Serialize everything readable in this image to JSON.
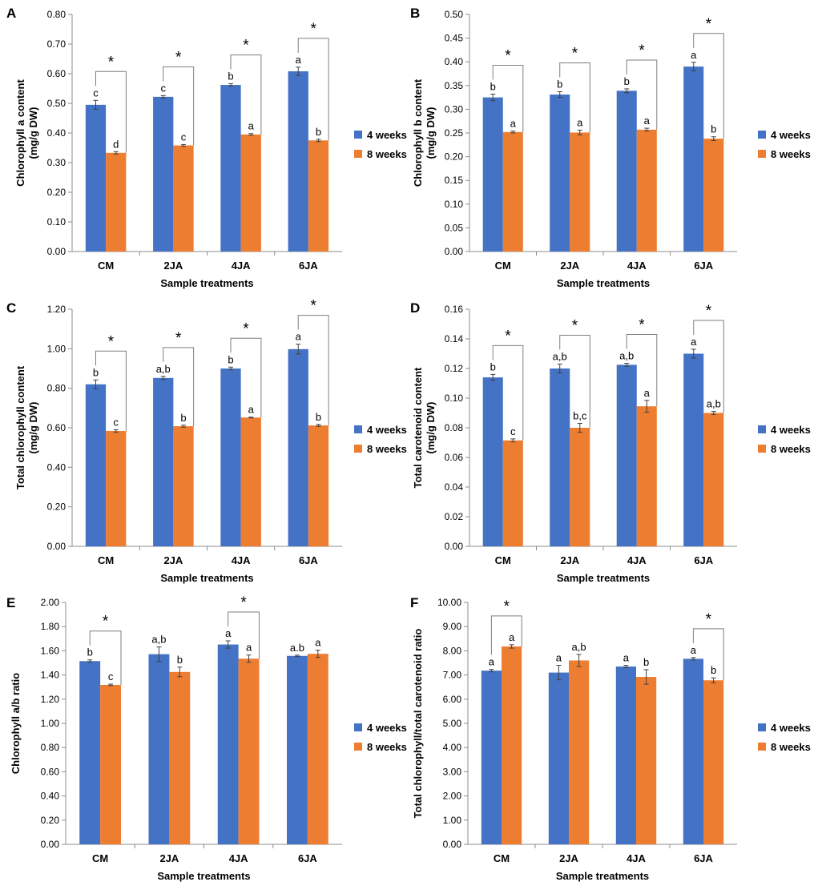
{
  "colors": {
    "series_4w": "#4472C4",
    "series_8w": "#ED7D31",
    "axis": "#8c8c8c",
    "bracket": "#7f7f7f",
    "errorbar": "#404040"
  },
  "chart_data": [
    {
      "panel": "A",
      "type": "bar",
      "categories": [
        "CM",
        "2JA",
        "4JA",
        "6JA"
      ],
      "xlabel": "Sample treatments",
      "ylabel_line1": "Chlorophyll a content",
      "ylabel_line2": "(mg/g DW)",
      "ylim": [
        0,
        0.8
      ],
      "tick_step": 0.1,
      "tick_labels": [
        "0.00",
        "0.10",
        "0.20",
        "0.30",
        "0.40",
        "0.50",
        "0.60",
        "0.70",
        "0.80"
      ],
      "legend": [
        "4 weeks",
        "8 weeks"
      ],
      "series": [
        {
          "name": "4 weeks",
          "values": [
            0.495,
            0.522,
            0.562,
            0.608
          ],
          "errors": [
            0.015,
            0.004,
            0.004,
            0.014
          ],
          "letters": [
            "c",
            "c",
            "b",
            "a"
          ]
        },
        {
          "name": "8 weeks",
          "values": [
            0.333,
            0.358,
            0.395,
            0.375
          ],
          "errors": [
            0.004,
            0.003,
            0.003,
            0.004
          ],
          "letters": [
            "d",
            "c",
            "a",
            "b"
          ]
        }
      ],
      "significance": [
        "*",
        "*",
        "*",
        "*"
      ]
    },
    {
      "panel": "B",
      "type": "bar",
      "categories": [
        "CM",
        "2JA",
        "4JA",
        "6JA"
      ],
      "xlabel": "Sample treatments",
      "ylabel_line1": "Chlorophyll b content",
      "ylabel_line2": "(mg/g DW)",
      "ylim": [
        0,
        0.5
      ],
      "tick_step": 0.05,
      "tick_labels": [
        "0.00",
        "0.05",
        "0.10",
        "0.15",
        "0.20",
        "0.25",
        "0.30",
        "0.35",
        "0.40",
        "0.45",
        "0.50"
      ],
      "legend": [
        "4 weeks",
        "8 weeks"
      ],
      "series": [
        {
          "name": "4 weeks",
          "values": [
            0.325,
            0.331,
            0.339,
            0.39
          ],
          "errors": [
            0.007,
            0.006,
            0.004,
            0.009
          ],
          "letters": [
            "b",
            "b",
            "b",
            "a"
          ]
        },
        {
          "name": "8 weeks",
          "values": [
            0.252,
            0.251,
            0.257,
            0.238
          ],
          "errors": [
            0.002,
            0.005,
            0.003,
            0.004
          ],
          "letters": [
            "a",
            "a",
            "a",
            "b"
          ]
        }
      ],
      "significance": [
        "*",
        "*",
        "*",
        "*"
      ]
    },
    {
      "panel": "C",
      "type": "bar",
      "categories": [
        "CM",
        "2JA",
        "4JA",
        "6JA"
      ],
      "xlabel": "Sample treatments",
      "ylabel_line1": "Total chlorophyll content",
      "ylabel_line2": "(mg/g DW)",
      "ylim": [
        0,
        1.2
      ],
      "tick_step": 0.2,
      "tick_labels": [
        "0.00",
        "0.20",
        "0.40",
        "0.60",
        "0.80",
        "1.00",
        "1.20"
      ],
      "legend": [
        "4 weeks",
        "8 weeks"
      ],
      "series": [
        {
          "name": "4 weeks",
          "values": [
            0.82,
            0.852,
            0.9,
            0.998
          ],
          "errors": [
            0.022,
            0.008,
            0.007,
            0.025
          ],
          "letters": [
            "b",
            "a,b",
            "b",
            "a"
          ]
        },
        {
          "name": "8 weeks",
          "values": [
            0.584,
            0.608,
            0.652,
            0.612
          ],
          "errors": [
            0.006,
            0.005,
            0.002,
            0.005
          ],
          "letters": [
            "c",
            "b",
            "a",
            "b"
          ]
        }
      ],
      "significance": [
        "*",
        "*",
        "*",
        "*"
      ]
    },
    {
      "panel": "D",
      "type": "bar",
      "categories": [
        "CM",
        "2JA",
        "4JA",
        "6JA"
      ],
      "xlabel": "Sample treatments",
      "ylabel_line1": "Total carotenoid content",
      "ylabel_line2": "(mg/g DW)",
      "ylim": [
        0,
        0.16
      ],
      "tick_step": 0.02,
      "tick_labels": [
        "0.00",
        "0.02",
        "0.04",
        "0.06",
        "0.08",
        "0.10",
        "0.12",
        "0.14",
        "0.16"
      ],
      "legend": [
        "4 weeks",
        "8 weeks"
      ],
      "series": [
        {
          "name": "4 weeks",
          "values": [
            0.114,
            0.12,
            0.1225,
            0.13
          ],
          "errors": [
            0.002,
            0.003,
            0.001,
            0.003
          ],
          "letters": [
            "b",
            "a,b",
            "a,b",
            "a"
          ]
        },
        {
          "name": "8 weeks",
          "values": [
            0.0715,
            0.08,
            0.0945,
            0.09
          ],
          "errors": [
            0.001,
            0.003,
            0.004,
            0.001
          ],
          "letters": [
            "c",
            "b,c",
            "a",
            "a,b"
          ]
        }
      ],
      "significance": [
        "*",
        "*",
        "*",
        "*"
      ]
    },
    {
      "panel": "E",
      "type": "bar",
      "categories": [
        "CM",
        "2JA",
        "4JA",
        "6JA"
      ],
      "xlabel": "Sample treatments",
      "ylabel_line1": "Chlorophyll a/b ratio",
      "ylabel_line2": "",
      "ylim": [
        0,
        2.0
      ],
      "tick_step": 0.2,
      "tick_labels": [
        "0.00",
        "0.20",
        "0.40",
        "0.60",
        "0.80",
        "1.00",
        "1.20",
        "1.40",
        "1.60",
        "1.80",
        "2.00"
      ],
      "legend": [
        "4 weeks",
        "8 weeks"
      ],
      "series": [
        {
          "name": "4 weeks",
          "values": [
            1.515,
            1.572,
            1.652,
            1.558
          ],
          "errors": [
            0.01,
            0.06,
            0.03,
            0.006
          ],
          "letters": [
            "b",
            "a,b",
            "a",
            "a.b"
          ]
        },
        {
          "name": "8 weeks",
          "values": [
            1.318,
            1.425,
            1.535,
            1.575
          ],
          "errors": [
            0.006,
            0.04,
            0.03,
            0.03
          ],
          "letters": [
            "c",
            "b",
            "a",
            "a"
          ]
        }
      ],
      "significance": [
        "*",
        "",
        "*",
        ""
      ]
    },
    {
      "panel": "F",
      "type": "bar",
      "categories": [
        "CM",
        "2JA",
        "4JA",
        "6JA"
      ],
      "xlabel": "Sample treatments",
      "ylabel_line1": "Total chlorophyll/total carotenoid ratio",
      "ylabel_line2": "",
      "ylim": [
        0,
        10
      ],
      "tick_step": 1,
      "tick_labels": [
        "0.00",
        "1.00",
        "2.00",
        "3.00",
        "4.00",
        "5.00",
        "6.00",
        "7.00",
        "8.00",
        "9.00",
        "10.00"
      ],
      "legend": [
        "4 weeks",
        "8 weeks"
      ],
      "series": [
        {
          "name": "4 weeks",
          "values": [
            7.18,
            7.1,
            7.35,
            7.67
          ],
          "errors": [
            0.05,
            0.3,
            0.05,
            0.05
          ],
          "letters": [
            "a",
            "a",
            "a",
            "a"
          ]
        },
        {
          "name": "8 weeks",
          "values": [
            8.18,
            7.6,
            6.92,
            6.78
          ],
          "errors": [
            0.07,
            0.25,
            0.3,
            0.1
          ],
          "letters": [
            "a",
            "a,b",
            "b",
            "b"
          ]
        }
      ],
      "significance": [
        "*",
        "",
        "",
        "*"
      ]
    }
  ]
}
